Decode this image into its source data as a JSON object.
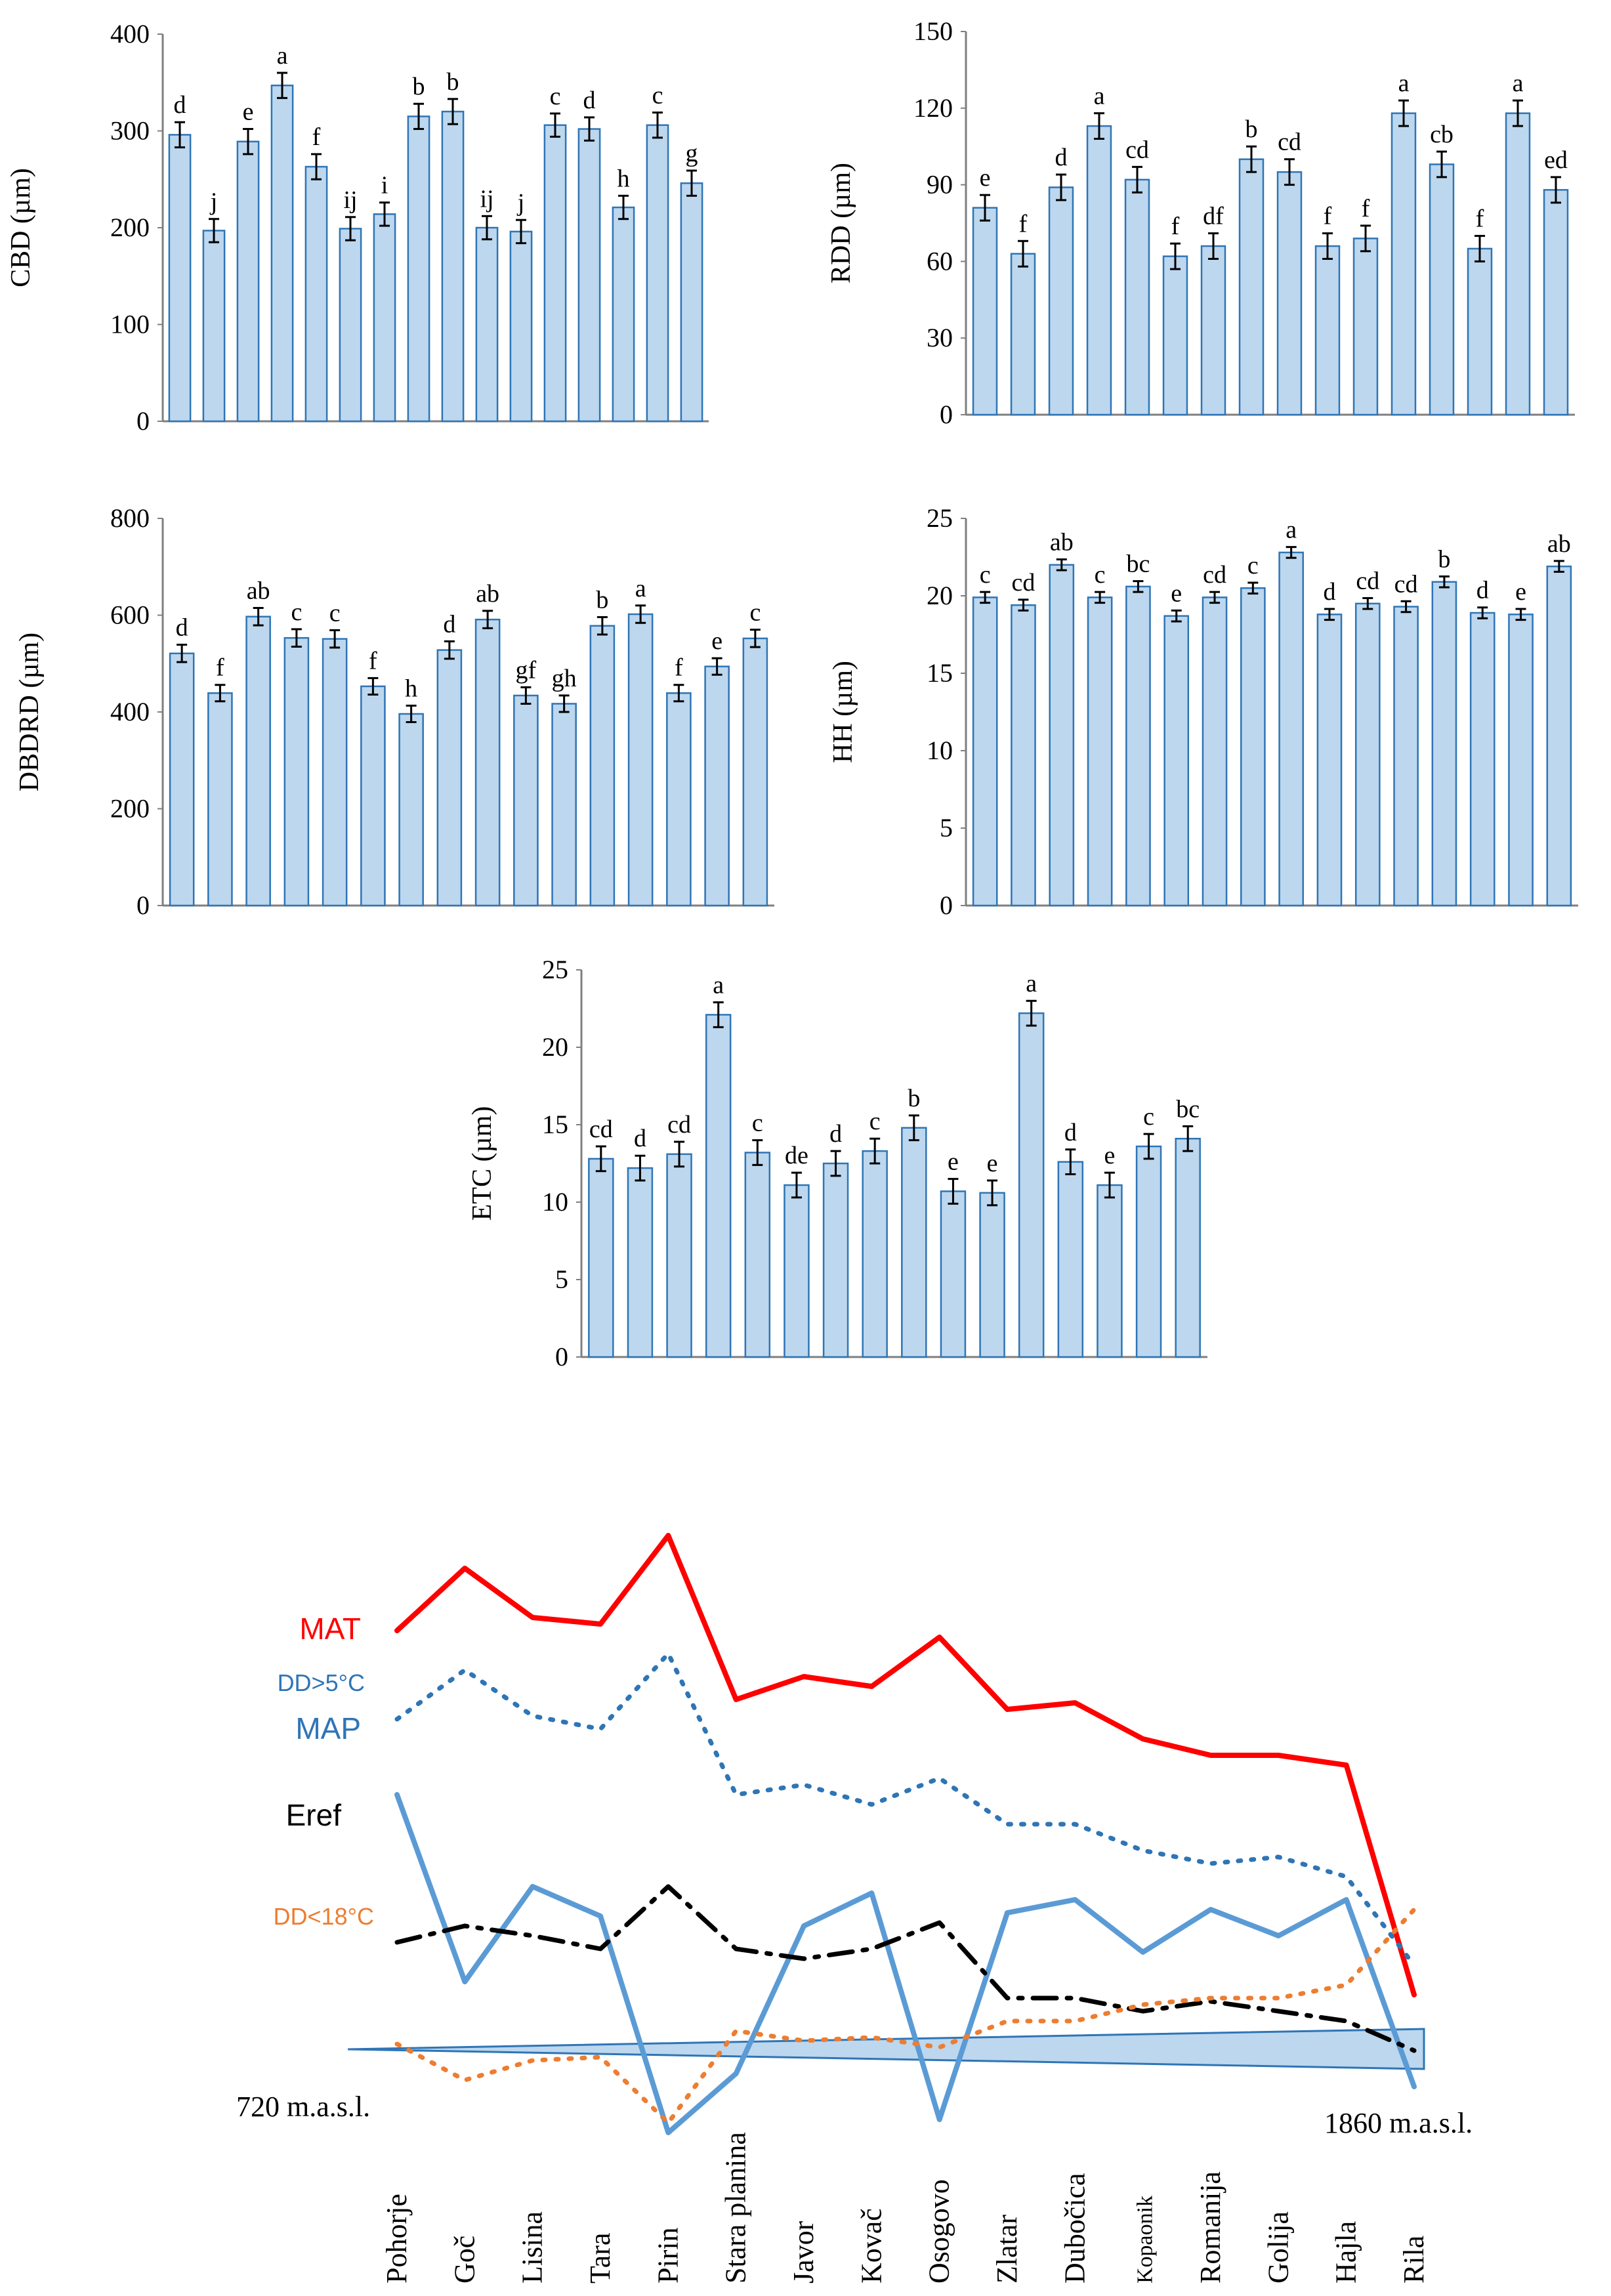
{
  "sites": [
    "Pohorje",
    "Goč",
    "Lisina",
    "Tara",
    "Pirin",
    "Stara planina",
    "Javor",
    "Kovač",
    "Osogovo",
    "Zlatar",
    "Dubočica",
    "Kopaonik",
    "Romanija",
    "Golija",
    "Hajla",
    "Rila"
  ],
  "chart_data": [
    {
      "id": "cbd",
      "type": "bar",
      "ylabel": "CBD (µm)",
      "ylim": [
        0,
        400
      ],
      "yticks": [
        0,
        100,
        200,
        300,
        400
      ],
      "values": [
        296,
        197,
        289,
        347,
        263,
        199,
        214,
        315,
        320,
        200,
        196,
        306,
        302,
        221,
        306,
        246
      ],
      "errors": [
        13,
        12,
        13,
        13,
        13,
        12,
        12,
        13,
        13,
        12,
        12,
        12,
        12,
        12,
        13,
        13
      ],
      "letters": [
        "d",
        "j",
        "e",
        "a",
        "f",
        "ij",
        "i",
        "b",
        "b",
        "ij",
        "j",
        "c",
        "d",
        "h",
        "c",
        "g"
      ]
    },
    {
      "id": "rdd",
      "type": "bar",
      "ylabel": "RDD (µm)",
      "ylim": [
        0,
        150
      ],
      "yticks": [
        0,
        30,
        60,
        90,
        120,
        150
      ],
      "values": [
        81,
        63,
        89,
        113,
        92,
        62,
        66,
        100,
        95,
        66,
        69,
        118,
        98,
        65,
        118,
        88
      ],
      "errors": [
        5,
        5,
        5,
        5,
        5,
        5,
        5,
        5,
        5,
        5,
        5,
        5,
        5,
        5,
        5,
        5
      ],
      "letters": [
        "e",
        "f",
        "d",
        "a",
        "cd",
        "f",
        "df",
        "b",
        "cd",
        "f",
        "f",
        "a",
        "cb",
        "f",
        "a",
        "ed"
      ]
    },
    {
      "id": "dbdrd",
      "type": "bar",
      "ylabel": "DBDRD (µm)",
      "ylim": [
        0,
        800
      ],
      "yticks": [
        0,
        200,
        400,
        600,
        800
      ],
      "values": [
        521,
        439,
        597,
        553,
        551,
        453,
        396,
        528,
        591,
        434,
        417,
        578,
        602,
        439,
        494,
        552
      ],
      "errors": [
        18,
        17,
        18,
        18,
        18,
        17,
        17,
        18,
        18,
        17,
        17,
        18,
        18,
        17,
        17,
        18
      ],
      "letters": [
        "d",
        "f",
        "ab",
        "c",
        "c",
        "f",
        "h",
        "d",
        "ab",
        "gf",
        "gh",
        "b",
        "a",
        "f",
        "e",
        "c"
      ]
    },
    {
      "id": "hh",
      "type": "bar",
      "ylabel": "HH (µm)",
      "ylim": [
        0,
        25
      ],
      "yticks": [
        0,
        5,
        10,
        15,
        20,
        25
      ],
      "values": [
        19.9,
        19.4,
        22.0,
        19.9,
        20.6,
        18.7,
        19.9,
        20.5,
        22.8,
        18.8,
        19.5,
        19.3,
        20.9,
        18.9,
        18.8,
        21.9
      ],
      "errors": [
        0.35,
        0.35,
        0.35,
        0.35,
        0.35,
        0.35,
        0.35,
        0.35,
        0.35,
        0.35,
        0.35,
        0.35,
        0.35,
        0.35,
        0.35,
        0.35
      ],
      "letters": [
        "c",
        "cd",
        "ab",
        "c",
        "bc",
        "e",
        "cd",
        "c",
        "a",
        "d",
        "cd",
        "cd",
        "b",
        "d",
        "e",
        "ab"
      ]
    },
    {
      "id": "etc",
      "type": "bar",
      "ylabel": "ETC (µm)",
      "ylim": [
        0,
        25
      ],
      "yticks": [
        0,
        5,
        10,
        15,
        20,
        25
      ],
      "values": [
        12.8,
        12.2,
        13.1,
        22.1,
        13.2,
        11.1,
        12.5,
        13.3,
        14.8,
        10.7,
        10.6,
        22.2,
        12.6,
        11.1,
        13.6,
        14.1
      ],
      "errors": [
        0.8,
        0.8,
        0.8,
        0.8,
        0.8,
        0.8,
        0.8,
        0.8,
        0.8,
        0.8,
        0.8,
        0.8,
        0.8,
        0.8,
        0.8,
        0.8
      ],
      "letters": [
        "cd",
        "d",
        "cd",
        "a",
        "c",
        "de",
        "d",
        "c",
        "b",
        "e",
        "e",
        "a",
        "d",
        "e",
        "c",
        "bc"
      ]
    },
    {
      "id": "climate",
      "type": "line",
      "note": "relative climate trends (no numeric axis)",
      "series": [
        {
          "name": "MAT",
          "color": "#ff0000",
          "style": "solid",
          "values": [
            0.71,
            0.9,
            0.75,
            0.73,
            1.0,
            0.5,
            0.57,
            0.54,
            0.69,
            0.47,
            0.49,
            0.38,
            0.33,
            0.33,
            0.3,
            -0.4
          ]
        },
        {
          "name": "DD>5°C",
          "color": "#2e75b6",
          "style": "dotted",
          "values": [
            0.44,
            0.59,
            0.45,
            0.41,
            0.64,
            0.21,
            0.24,
            0.18,
            0.26,
            0.12,
            0.12,
            0.04,
            0.0,
            0.02,
            -0.04,
            -0.31
          ]
        },
        {
          "name": "MAP",
          "color": "#5b9bd5",
          "style": "solid",
          "values": [
            0.21,
            -0.36,
            -0.07,
            -0.16,
            -0.82,
            -0.64,
            -0.19,
            -0.09,
            -0.78,
            -0.15,
            -0.11,
            -0.27,
            -0.14,
            -0.22,
            -0.11,
            -0.68
          ]
        },
        {
          "name": "Eref",
          "color": "#000000",
          "style": "dashdot",
          "values": [
            -0.24,
            -0.19,
            -0.22,
            -0.26,
            -0.07,
            -0.26,
            -0.29,
            -0.26,
            -0.18,
            -0.41,
            -0.41,
            -0.45,
            -0.42,
            -0.45,
            -0.48,
            -0.57
          ]
        },
        {
          "name": "DD<18°C",
          "color": "#ed7d31",
          "style": "dotted",
          "values": [
            -0.55,
            -0.66,
            -0.6,
            -0.59,
            -0.79,
            -0.51,
            -0.54,
            -0.53,
            -0.56,
            -0.48,
            -0.48,
            -0.43,
            -0.41,
            -0.41,
            -0.37,
            -0.14
          ]
        }
      ],
      "elevation_start": "720 m.a.s.l.",
      "elevation_end": "1860 m.a.s.l."
    }
  ]
}
